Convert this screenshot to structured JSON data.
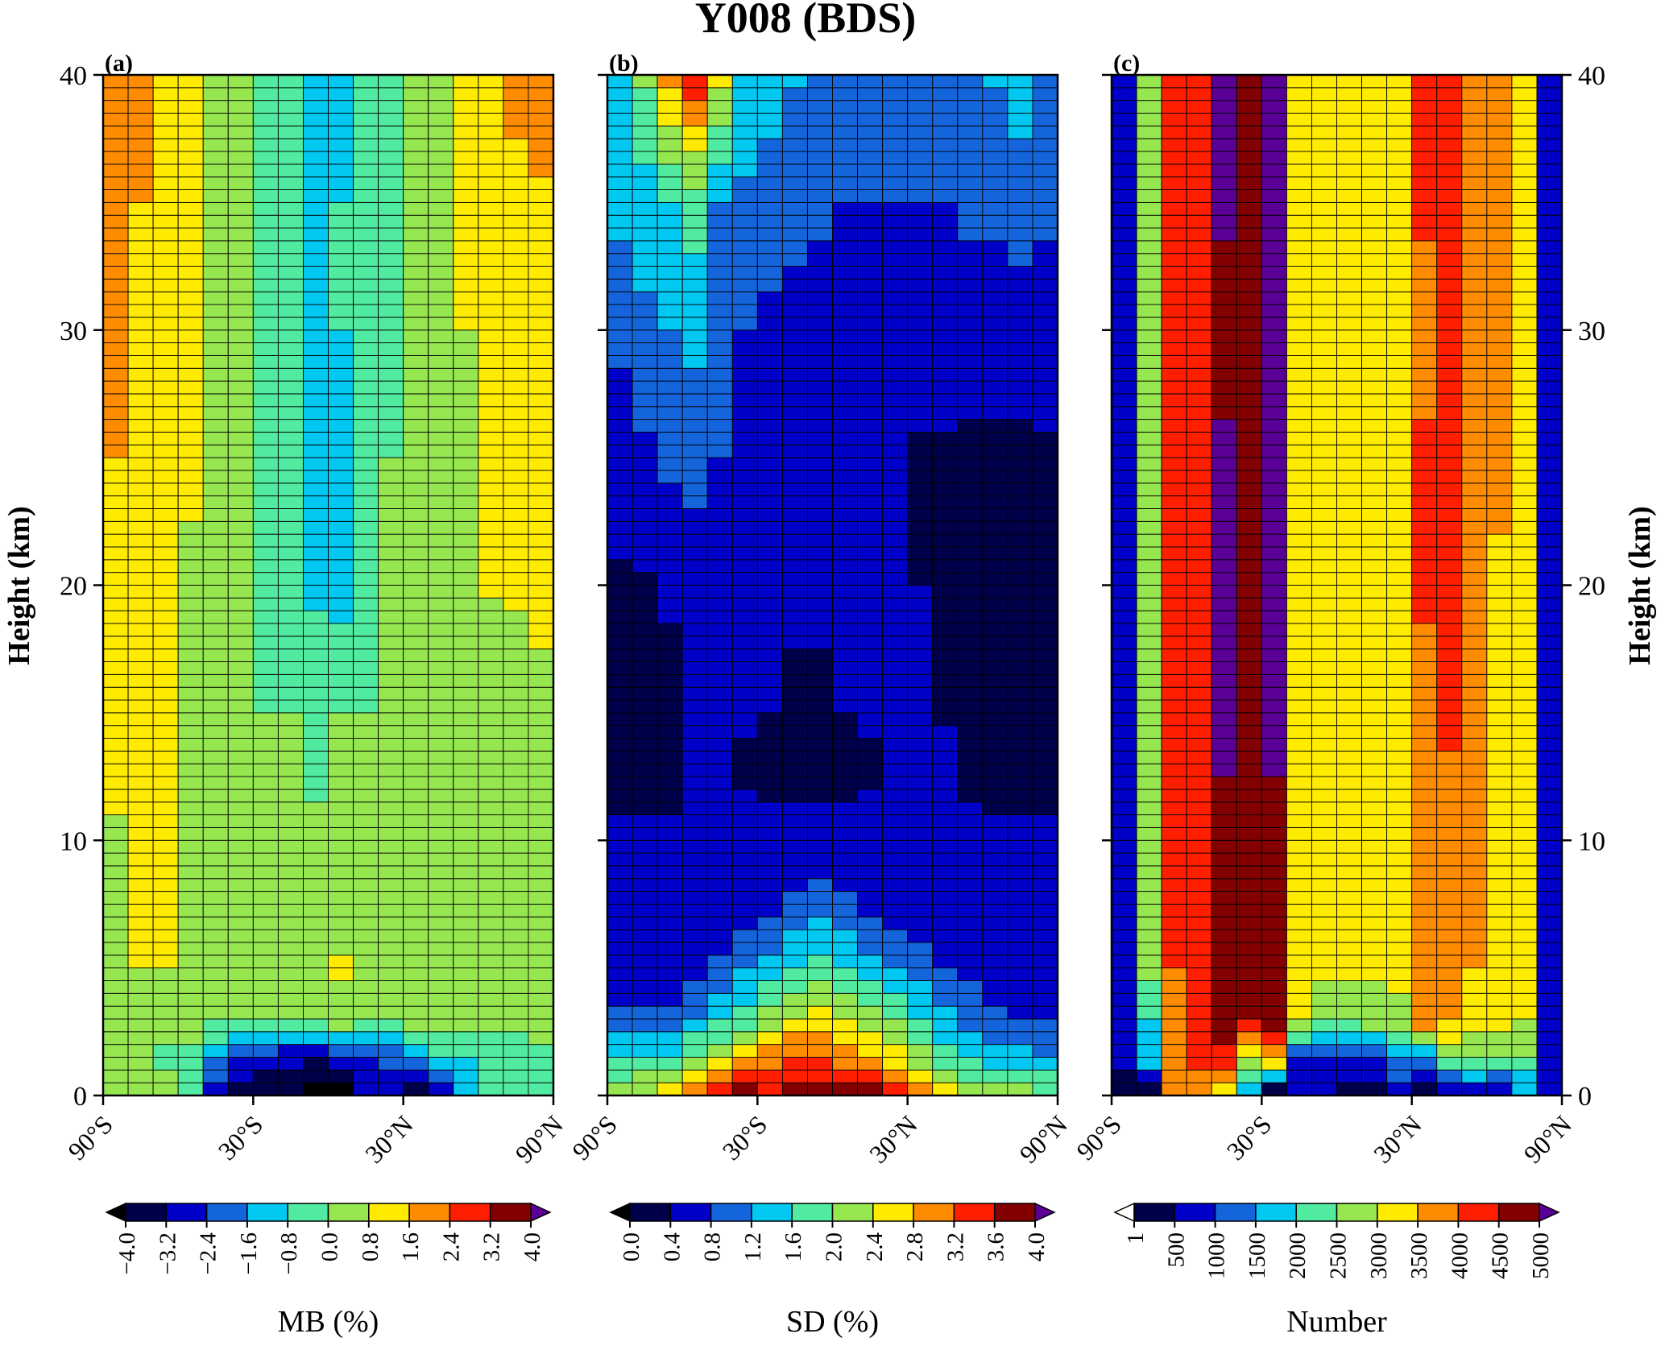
{
  "figure": {
    "title": "Y008 (BDS)",
    "ylabel": "Height (km)",
    "y_ticks": [
      "0",
      "10",
      "20",
      "30",
      "40"
    ],
    "x_ticks": [
      "90°S",
      "30°S",
      "30°N",
      "90°N"
    ],
    "panel_labels": [
      "(a)",
      "(b)",
      "(c)"
    ]
  },
  "chart_data": [
    {
      "type": "heatmap",
      "panel": "(a)",
      "x_range": [
        -90,
        90
      ],
      "y_range": [
        0,
        40
      ],
      "lat_bin_deg": 10,
      "height_bin_km": 0.5,
      "colorbar_label": "MB (%)",
      "colorbar_ticks": [
        "−4.0",
        "−3.2",
        "−2.4",
        "−1.6",
        "−0.8",
        "0.0",
        "0.8",
        "1.6",
        "2.4",
        "3.2",
        "4.0"
      ],
      "colorbar_levels": [
        -4.0,
        -3.2,
        -2.4,
        -1.6,
        -0.8,
        0.0,
        0.8,
        1.6,
        2.4,
        3.2,
        4.0
      ],
      "colorbar_extend": "both",
      "anchors_lat": [
        -85,
        -75,
        -65,
        -55,
        -45,
        -35,
        -25,
        -15,
        -5,
        5,
        15,
        25,
        35,
        45,
        55,
        65,
        75,
        85
      ],
      "anchors_h": [
        0.25,
        1.5,
        3.0,
        5.0,
        10.0,
        15.0,
        20.0,
        25.0,
        30.0,
        35.0,
        39.75
      ],
      "anchors_values": [
        [
          0.4,
          0.4,
          0.4,
          -0.4,
          -2.6,
          -3.5,
          -3.5,
          -3.8,
          -4.2,
          -4.5,
          -2.6,
          -3.2,
          -3.4,
          -3.0,
          -1.2,
          -0.8,
          -0.8,
          -0.5
        ],
        [
          0.3,
          0.3,
          -0.3,
          -0.5,
          -1.5,
          -2.3,
          -2.8,
          -3.0,
          -3.0,
          -2.7,
          -2.4,
          -2.0,
          -1.7,
          -1.0,
          -0.9,
          -0.6,
          -0.6,
          -0.3
        ],
        [
          0.3,
          0.3,
          0.4,
          0.5,
          0.2,
          0.1,
          0.1,
          0.1,
          0.2,
          0.6,
          0.3,
          0.3,
          0.5,
          0.5,
          0.5,
          0.5,
          0.5,
          0.5
        ],
        [
          0.7,
          0.8,
          0.8,
          0.7,
          0.3,
          0.4,
          0.4,
          0.4,
          0.4,
          0.9,
          0.5,
          0.4,
          0.4,
          0.6,
          0.6,
          0.6,
          0.6,
          0.6
        ],
        [
          0.7,
          0.9,
          0.9,
          0.7,
          0.4,
          0.3,
          0.3,
          0.1,
          0.1,
          0.1,
          0.1,
          0.2,
          0.3,
          0.4,
          0.4,
          0.5,
          0.5,
          0.7
        ],
        [
          1.2,
          1.2,
          0.9,
          0.6,
          0.3,
          0.0,
          0.0,
          0.0,
          -0.2,
          0.0,
          0.0,
          0.0,
          0.0,
          0.0,
          0.1,
          0.2,
          0.4,
          0.7
        ],
        [
          1.4,
          1.2,
          0.9,
          0.7,
          0.3,
          0.0,
          -0.4,
          -0.6,
          -1.0,
          -1.1,
          -0.3,
          0.0,
          0.0,
          0.3,
          0.5,
          0.9,
          0.9,
          0.9
        ],
        [
          1.6,
          1.2,
          1.0,
          0.9,
          0.4,
          0.0,
          -0.4,
          -0.8,
          -1.0,
          -0.9,
          -0.4,
          0.0,
          0.2,
          0.4,
          0.7,
          1.0,
          1.2,
          1.4
        ],
        [
          2.0,
          1.4,
          1.2,
          0.9,
          0.5,
          0.0,
          -0.4,
          -0.8,
          -1.0,
          -0.8,
          -0.6,
          -0.3,
          0.2,
          0.6,
          0.8,
          1.1,
          1.3,
          1.4
        ],
        [
          2.1,
          1.6,
          1.2,
          1.0,
          0.8,
          0.1,
          -0.3,
          -0.8,
          -0.9,
          -0.8,
          -0.7,
          -0.2,
          0.3,
          0.6,
          0.9,
          1.2,
          1.4,
          1.5
        ],
        [
          2.3,
          2.0,
          1.3,
          1.0,
          0.6,
          0.2,
          -0.4,
          -0.8,
          -0.9,
          -0.9,
          -0.8,
          -0.5,
          0.0,
          0.6,
          1.0,
          1.3,
          1.8,
          2.0
        ]
      ]
    },
    {
      "type": "heatmap",
      "panel": "(b)",
      "x_range": [
        -90,
        90
      ],
      "y_range": [
        0,
        40
      ],
      "lat_bin_deg": 10,
      "height_bin_km": 0.5,
      "colorbar_label": "SD (%)",
      "colorbar_ticks": [
        "0.0",
        "0.4",
        "0.8",
        "1.2",
        "1.6",
        "2.0",
        "2.4",
        "2.8",
        "3.2",
        "3.6",
        "4.0"
      ],
      "colorbar_levels": [
        0.0,
        0.4,
        0.8,
        1.2,
        1.6,
        2.0,
        2.4,
        2.8,
        3.2,
        3.6,
        4.0
      ],
      "colorbar_extend": "both",
      "anchors_lat": [
        -85,
        -75,
        -65,
        -55,
        -45,
        -35,
        -25,
        -15,
        -5,
        5,
        15,
        25,
        35,
        45,
        55,
        65,
        75,
        85
      ],
      "anchors_h": [
        0.25,
        1.5,
        3.0,
        5.0,
        7.0,
        10.0,
        13.0,
        16.0,
        20.0,
        25.0,
        30.0,
        35.0,
        39.75
      ],
      "anchors_values": [
        [
          2.2,
          2.3,
          2.7,
          2.8,
          3.2,
          3.6,
          3.5,
          3.7,
          3.8,
          3.7,
          3.6,
          3.3,
          3.1,
          2.7,
          2.3,
          2.2,
          2.0,
          1.9
        ],
        [
          1.6,
          1.6,
          1.7,
          2.0,
          2.4,
          2.9,
          3.1,
          3.1,
          3.1,
          3.0,
          2.9,
          2.5,
          2.2,
          1.8,
          1.5,
          1.4,
          1.3,
          1.2
        ],
        [
          0.9,
          0.9,
          0.9,
          1.2,
          1.5,
          1.8,
          2.2,
          2.5,
          2.6,
          2.4,
          2.2,
          1.9,
          1.6,
          1.3,
          1.1,
          0.9,
          0.8,
          0.8
        ],
        [
          0.6,
          0.6,
          0.6,
          0.7,
          0.9,
          1.2,
          1.4,
          1.6,
          1.8,
          1.6,
          1.4,
          1.2,
          1.0,
          0.8,
          0.7,
          0.6,
          0.6,
          0.6
        ],
        [
          0.5,
          0.5,
          0.5,
          0.6,
          0.6,
          0.7,
          0.8,
          1.0,
          1.2,
          1.0,
          0.8,
          0.7,
          0.6,
          0.6,
          0.5,
          0.5,
          0.5,
          0.5
        ],
        [
          0.45,
          0.45,
          0.45,
          0.45,
          0.5,
          0.5,
          0.5,
          0.5,
          0.5,
          0.5,
          0.5,
          0.5,
          0.5,
          0.5,
          0.45,
          0.45,
          0.45,
          0.45
        ],
        [
          0.3,
          0.3,
          0.3,
          0.4,
          0.45,
          0.35,
          0.3,
          0.3,
          0.3,
          0.3,
          0.35,
          0.45,
          0.45,
          0.45,
          0.35,
          0.3,
          0.3,
          0.3
        ],
        [
          0.3,
          0.3,
          0.3,
          0.45,
          0.5,
          0.5,
          0.45,
          0.35,
          0.35,
          0.45,
          0.5,
          0.5,
          0.45,
          0.35,
          0.3,
          0.3,
          0.3,
          0.3
        ],
        [
          0.35,
          0.35,
          0.45,
          0.6,
          0.6,
          0.6,
          0.55,
          0.5,
          0.5,
          0.5,
          0.45,
          0.45,
          0.4,
          0.35,
          0.3,
          0.3,
          0.3,
          0.35
        ],
        [
          0.6,
          0.7,
          0.9,
          0.95,
          0.8,
          0.7,
          0.5,
          0.45,
          0.45,
          0.5,
          0.5,
          0.45,
          0.35,
          0.35,
          0.3,
          0.3,
          0.3,
          0.35
        ],
        [
          0.9,
          1.1,
          1.2,
          1.3,
          0.9,
          0.8,
          0.7,
          0.6,
          0.6,
          0.6,
          0.6,
          0.6,
          0.6,
          0.55,
          0.6,
          0.6,
          0.6,
          0.6
        ],
        [
          1.3,
          1.4,
          1.6,
          1.8,
          1.2,
          1.1,
          1.0,
          1.0,
          0.9,
          0.8,
          0.8,
          0.8,
          0.8,
          0.8,
          0.9,
          0.9,
          1.0,
          0.9
        ],
        [
          1.5,
          2.0,
          2.8,
          3.4,
          2.4,
          1.5,
          1.4,
          1.2,
          1.1,
          1.0,
          1.0,
          0.9,
          0.8,
          0.8,
          0.9,
          1.2,
          1.4,
          0.9
        ]
      ]
    },
    {
      "type": "heatmap",
      "panel": "(c)",
      "x_range": [
        -90,
        90
      ],
      "y_range": [
        0,
        40
      ],
      "lat_bin_deg": 10,
      "height_bin_km": 0.5,
      "colorbar_label": "Number",
      "colorbar_ticks": [
        "1",
        "500",
        "1000",
        "1500",
        "2000",
        "2500",
        "3000",
        "3500",
        "4000",
        "4500",
        "5000"
      ],
      "colorbar_levels": [
        1,
        500,
        1000,
        1500,
        2000,
        2500,
        3000,
        3500,
        4000,
        4500,
        5000
      ],
      "colorbar_extend": "both",
      "anchors_lat": [
        -85,
        -75,
        -65,
        -55,
        -45,
        -35,
        -25,
        -15,
        -5,
        5,
        15,
        25,
        35,
        45,
        55,
        65,
        75,
        85
      ],
      "anchors_h": [
        0.25,
        1.5,
        3.0,
        5.0,
        10.0,
        15.0,
        20.0,
        25.0,
        30.0,
        35.0,
        39.75
      ],
      "anchors_values": [
        [
          300,
          400,
          3500,
          3600,
          3200,
          1600,
          300,
          600,
          700,
          400,
          400,
          600,
          400,
          700,
          900,
          700,
          1500,
          800
        ],
        [
          700,
          1800,
          3800,
          4100,
          4300,
          2800,
          3700,
          700,
          900,
          700,
          1000,
          1700,
          1600,
          2600,
          2700,
          2500,
          2700,
          800
        ],
        [
          900,
          2000,
          3900,
          4300,
          4800,
          4800,
          4700,
          3300,
          2800,
          2800,
          2800,
          2900,
          3900,
          3500,
          3200,
          3100,
          3000,
          800
        ],
        [
          900,
          2600,
          4000,
          4300,
          4800,
          4900,
          4800,
          3200,
          3100,
          3100,
          3100,
          3100,
          3700,
          3500,
          3500,
          3200,
          3100,
          800
        ],
        [
          900,
          2800,
          4000,
          4300,
          4800,
          4900,
          4800,
          3200,
          3200,
          3200,
          3200,
          3200,
          3800,
          3800,
          3500,
          3200,
          3100,
          800
        ],
        [
          900,
          2800,
          4000,
          4300,
          5200,
          4900,
          5200,
          3200,
          3200,
          3200,
          3200,
          3200,
          3800,
          4100,
          3800,
          3200,
          3100,
          800
        ],
        [
          900,
          2800,
          4000,
          4300,
          5200,
          4900,
          5200,
          3200,
          3200,
          3200,
          3200,
          3200,
          4100,
          4100,
          3800,
          3300,
          3100,
          800
        ],
        [
          900,
          2800,
          4000,
          4300,
          5200,
          4900,
          5200,
          3200,
          3200,
          3200,
          3200,
          3200,
          4100,
          4100,
          3800,
          3800,
          3100,
          800
        ],
        [
          900,
          2800,
          4000,
          4300,
          4600,
          4900,
          5200,
          3200,
          3200,
          3200,
          3200,
          3200,
          3800,
          4100,
          3800,
          3800,
          3100,
          800
        ],
        [
          900,
          2800,
          4000,
          4300,
          5200,
          4900,
          5200,
          3200,
          3200,
          3200,
          3200,
          3200,
          4100,
          4100,
          3800,
          3800,
          3100,
          800
        ],
        [
          900,
          2800,
          4000,
          4300,
          5200,
          4900,
          5200,
          3200,
          3200,
          3200,
          3200,
          3200,
          4300,
          4100,
          3800,
          3800,
          3100,
          800
        ]
      ]
    }
  ],
  "colors": {
    "palette": [
      "#00004a",
      "#0000c8",
      "#1464dc",
      "#00c8f0",
      "#50eba0",
      "#96e650",
      "#ffeb00",
      "#ff8c00",
      "#ff1e00",
      "#820000"
    ],
    "under_a": "#000000",
    "under_b": "#000000",
    "under_c": "#ffffff",
    "over": "#5a0096",
    "grid": "#000000"
  }
}
